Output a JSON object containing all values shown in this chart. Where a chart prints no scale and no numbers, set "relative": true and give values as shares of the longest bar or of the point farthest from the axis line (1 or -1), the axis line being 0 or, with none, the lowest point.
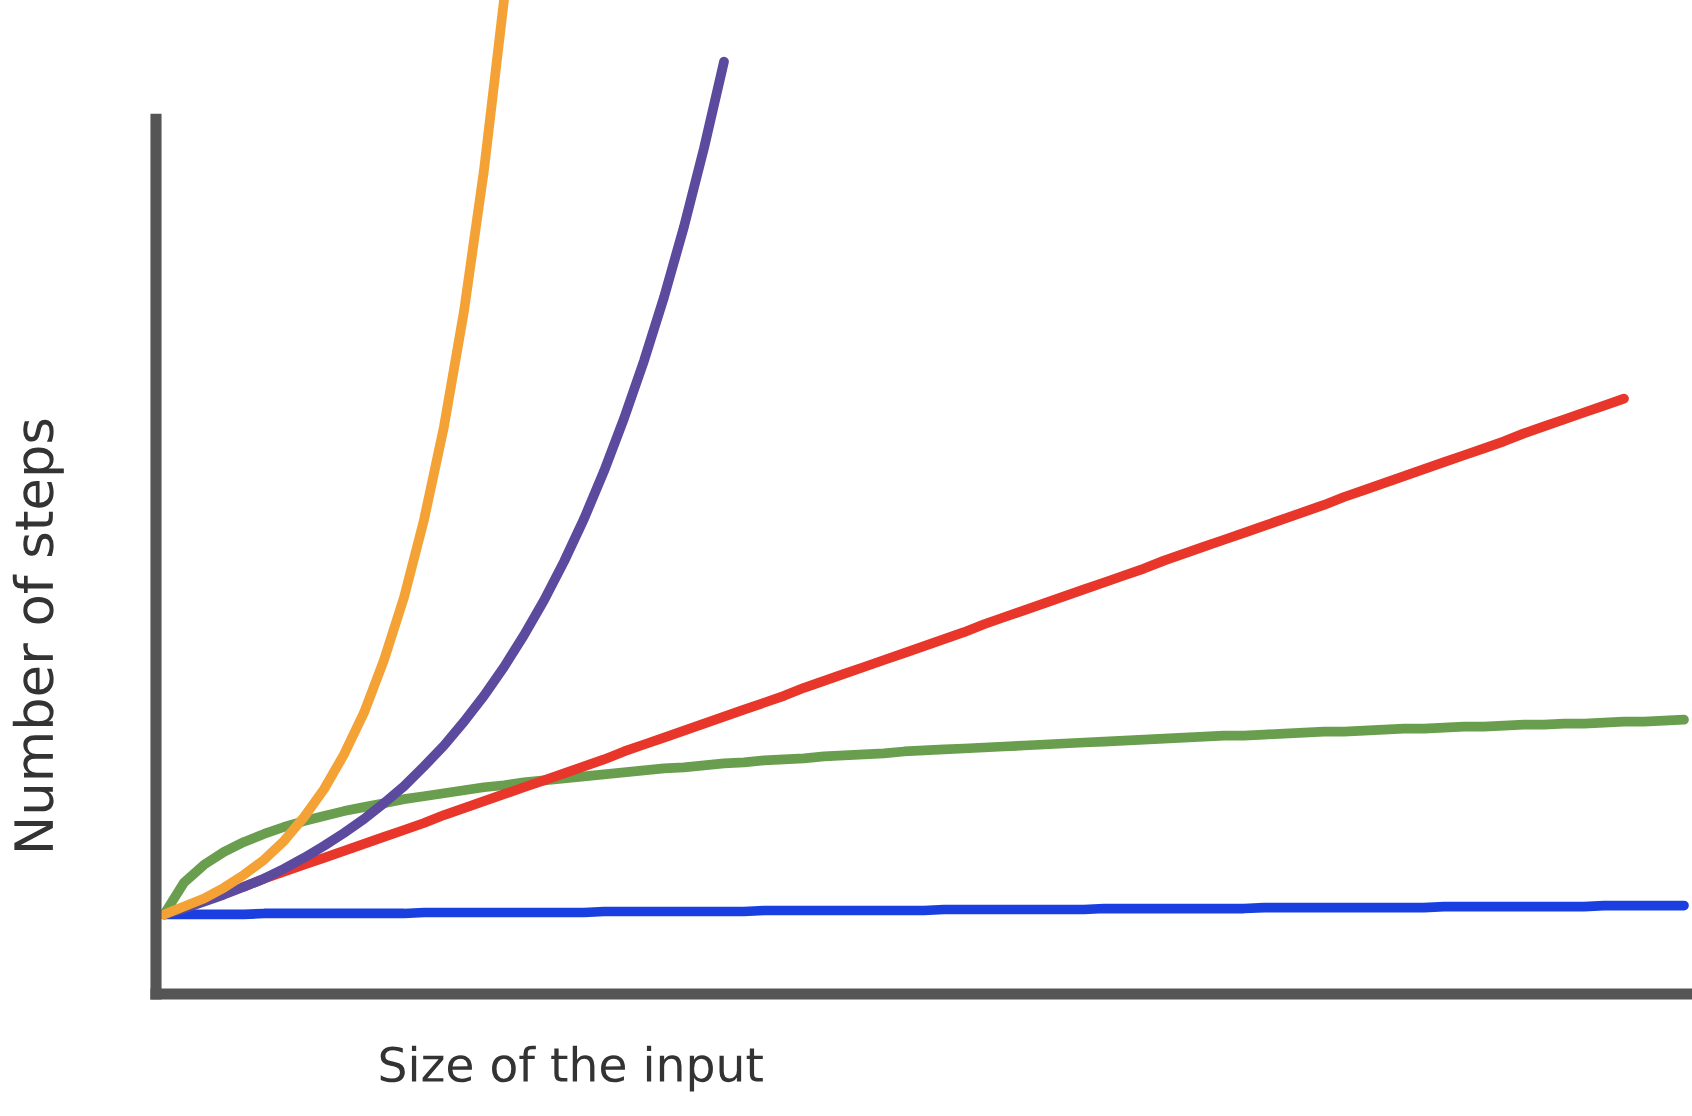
{
  "chart_data": {
    "type": "line",
    "relative": true,
    "xlabel": "Size of the input",
    "ylabel": "Number of steps",
    "legend": false,
    "grid": false,
    "categories": [
      null,
      null,
      null,
      null,
      null,
      null,
      null,
      null,
      null,
      null,
      null,
      null,
      null,
      null,
      null,
      null,
      null,
      null,
      null,
      null,
      null,
      null,
      null,
      null,
      null,
      null,
      null,
      null,
      null,
      null,
      null,
      null,
      null,
      null,
      null,
      null,
      null,
      null,
      null,
      null,
      null,
      null,
      null,
      null,
      null,
      null,
      null,
      null,
      null,
      null,
      null,
      null,
      null,
      null,
      null,
      null,
      null,
      null,
      null,
      null,
      null,
      null,
      null,
      null,
      null,
      null,
      null,
      null,
      null,
      null,
      null,
      null,
      null,
      null,
      null,
      null,
      null
    ],
    "series": [
      {
        "color": "#1a3fe0",
        "values": [
          0.08,
          0.08,
          0.08,
          0.08,
          0.08,
          0.081,
          0.081,
          0.081,
          0.081,
          0.081,
          0.081,
          0.081,
          0.081,
          0.082,
          0.082,
          0.082,
          0.082,
          0.082,
          0.082,
          0.082,
          0.082,
          0.082,
          0.083,
          0.083,
          0.083,
          0.083,
          0.083,
          0.083,
          0.083,
          0.083,
          0.084,
          0.084,
          0.084,
          0.084,
          0.084,
          0.084,
          0.084,
          0.084,
          0.084,
          0.085,
          0.085,
          0.085,
          0.085,
          0.085,
          0.085,
          0.085,
          0.085,
          0.086,
          0.086,
          0.086,
          0.086,
          0.086,
          0.086,
          0.086,
          0.086,
          0.087,
          0.087,
          0.087,
          0.087,
          0.087,
          0.087,
          0.087,
          0.087,
          0.087,
          0.088,
          0.088,
          0.088,
          0.088,
          0.088,
          0.088,
          0.088,
          0.088,
          0.089,
          0.089,
          0.089,
          0.089,
          0.089
        ]
      },
      {
        "color": "#6a9e4f",
        "values": [
          0.08,
          0.112,
          0.13,
          0.143,
          0.153,
          0.161,
          0.168,
          0.174,
          0.179,
          0.184,
          0.188,
          0.192,
          0.196,
          0.199,
          0.202,
          0.205,
          0.208,
          0.21,
          0.213,
          0.215,
          0.217,
          0.219,
          0.221,
          0.223,
          0.225,
          0.227,
          0.228,
          0.23,
          0.232,
          0.233,
          0.235,
          0.236,
          0.237,
          0.239,
          0.24,
          0.241,
          0.242,
          0.244,
          0.245,
          0.246,
          0.247,
          0.248,
          0.249,
          0.25,
          0.251,
          0.252,
          0.253,
          0.254,
          0.255,
          0.256,
          0.257,
          0.258,
          0.259,
          0.26,
          0.26,
          0.261,
          0.262,
          0.263,
          0.264,
          0.264,
          0.265,
          0.266,
          0.267,
          0.267,
          0.268,
          0.269,
          0.269,
          0.27,
          0.271,
          0.271,
          0.272,
          0.272,
          0.273,
          0.274,
          0.274,
          0.275,
          0.276
        ]
      },
      {
        "color": "#e8362a",
        "values": [
          null,
          null,
          null,
          null,
          0.108,
          0.116,
          0.123,
          0.13,
          0.137,
          0.144,
          0.151,
          0.158,
          0.165,
          0.172,
          0.18,
          0.187,
          0.194,
          0.201,
          0.208,
          0.215,
          0.222,
          0.229,
          0.236,
          0.244,
          0.251,
          0.258,
          0.265,
          0.272,
          0.279,
          0.286,
          0.293,
          0.3,
          0.308,
          0.315,
          0.322,
          0.329,
          0.336,
          0.343,
          0.35,
          0.357,
          0.364,
          0.372,
          0.379,
          0.386,
          0.393,
          0.4,
          0.407,
          0.414,
          0.421,
          0.428,
          0.436,
          0.443,
          0.45,
          0.457,
          0.464,
          0.471,
          0.478,
          0.485,
          0.492,
          0.5,
          0.507,
          0.514,
          0.521,
          0.528,
          0.535,
          0.542,
          0.549,
          0.556,
          0.564,
          0.571,
          0.578,
          0.585,
          0.592,
          0.599,
          null,
          null,
          null
        ]
      },
      {
        "color": "#5b4a9e",
        "values": [
          0.08,
          0.086,
          0.093,
          0.1,
          0.108,
          0.116,
          0.126,
          0.137,
          0.149,
          0.162,
          0.176,
          0.192,
          0.209,
          0.229,
          0.25,
          0.274,
          0.3,
          0.329,
          0.361,
          0.396,
          0.435,
          0.478,
          0.526,
          0.579,
          0.637,
          0.701,
          0.772,
          0.851,
          0.938,
          null,
          null,
          null,
          null,
          null,
          null,
          null,
          null,
          null,
          null,
          null,
          null,
          null,
          null,
          null,
          null,
          null,
          null,
          null,
          null,
          null,
          null,
          null,
          null,
          null,
          null,
          null,
          null,
          null,
          null,
          null,
          null,
          null,
          null,
          null,
          null,
          null,
          null,
          null,
          null,
          null,
          null,
          null,
          null,
          null,
          null,
          null,
          null
        ]
      },
      {
        "color": "#f4a236",
        "values": [
          0.08,
          0.088,
          0.096,
          0.107,
          0.12,
          0.135,
          0.154,
          0.178,
          0.206,
          0.241,
          0.283,
          0.336,
          0.399,
          0.477,
          0.571,
          0.687,
          0.829,
          1.0,
          null,
          null,
          null,
          null,
          null,
          null,
          null,
          null,
          null,
          null,
          null,
          null,
          null,
          null,
          null,
          null,
          null,
          null,
          null,
          null,
          null,
          null,
          null,
          null,
          null,
          null,
          null,
          null,
          null,
          null,
          null,
          null,
          null,
          null,
          null,
          null,
          null,
          null,
          null,
          null,
          null,
          null,
          null,
          null,
          null,
          null,
          null,
          null,
          null,
          null,
          null,
          null,
          null,
          null,
          null,
          null,
          null,
          null,
          null
        ]
      }
    ]
  }
}
